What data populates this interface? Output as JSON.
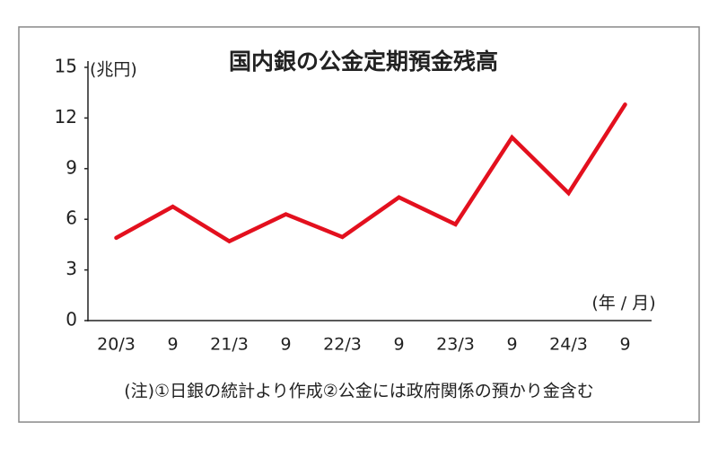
{
  "chart_data": {
    "type": "line",
    "title": "国内銀の公金定期預金残高",
    "y_label": "(兆円)",
    "x_label": "(年 / 月)",
    "note": "(注)①日銀の統計より作成②公金には政府関係の預かり金含む",
    "categories": [
      "20/3",
      "9",
      "21/3",
      "9",
      "22/3",
      "9",
      "23/3",
      "9",
      "24/3",
      "9"
    ],
    "series": [
      {
        "color": "#e3101e",
        "values": [
          4.9,
          6.75,
          4.7,
          6.3,
          4.95,
          7.3,
          5.7,
          10.85,
          7.55,
          12.8
        ]
      }
    ],
    "ylim": [
      0,
      15
    ],
    "yticks": [
      0,
      3,
      6,
      9,
      12,
      15
    ],
    "grid": false
  }
}
